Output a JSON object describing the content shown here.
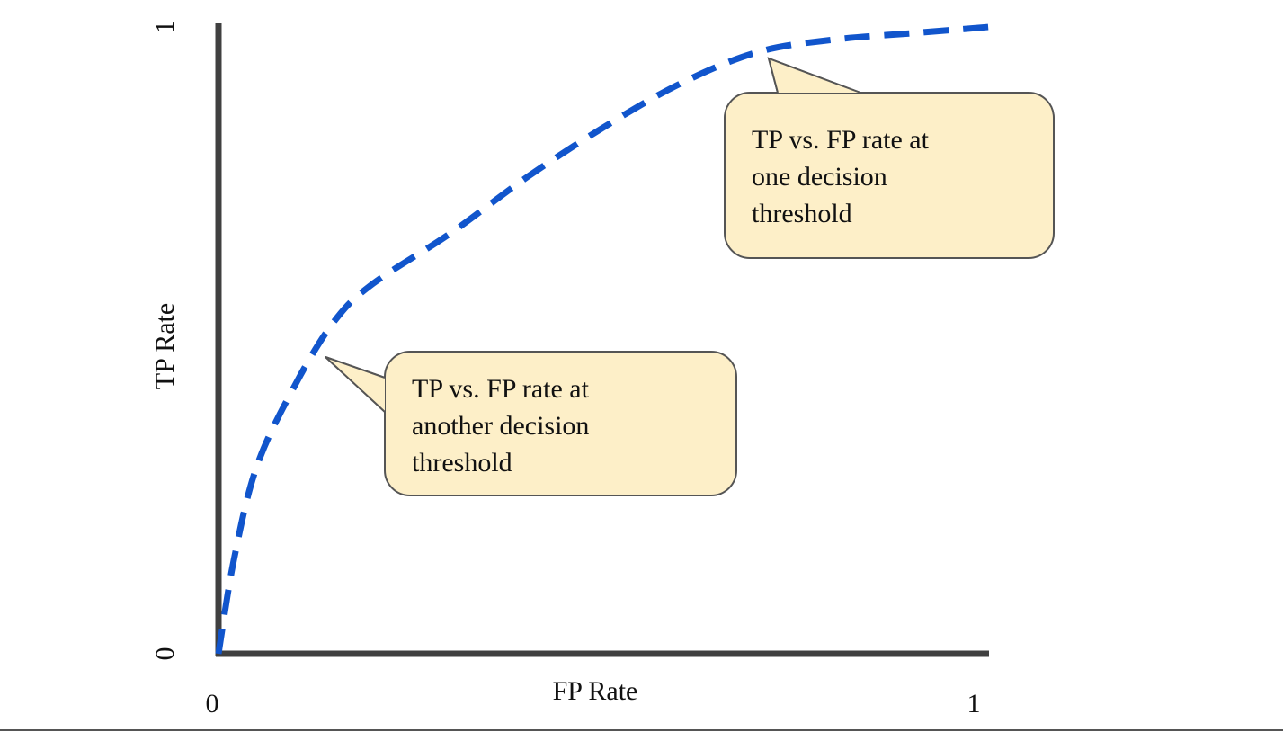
{
  "chart_data": {
    "type": "line",
    "x_label": "FP Rate",
    "y_label": "TP Rate",
    "x": [
      0,
      0.02,
      0.05,
      0.1,
      0.15,
      0.2,
      0.3,
      0.4,
      0.5,
      0.6,
      0.7,
      0.8,
      0.9,
      1.0
    ],
    "series": [
      {
        "color": "#1155cc",
        "values": [
          0,
          0.15,
          0.3,
          0.43,
          0.53,
          0.59,
          0.67,
          0.76,
          0.84,
          0.91,
          0.96,
          0.98,
          0.99,
          1.0
        ]
      }
    ],
    "xlim": [
      0,
      1
    ],
    "ylim": [
      0,
      1
    ],
    "xticks": [
      0,
      1
    ],
    "yticks": [
      0,
      1
    ],
    "line_style": "dashed",
    "annotations": [
      {
        "lines": [
          "TP vs. FP rate at",
          "one decision",
          "threshold"
        ]
      },
      {
        "lines": [
          "TP vs. FP rate at",
          "another decision",
          "threshold"
        ]
      }
    ]
  }
}
